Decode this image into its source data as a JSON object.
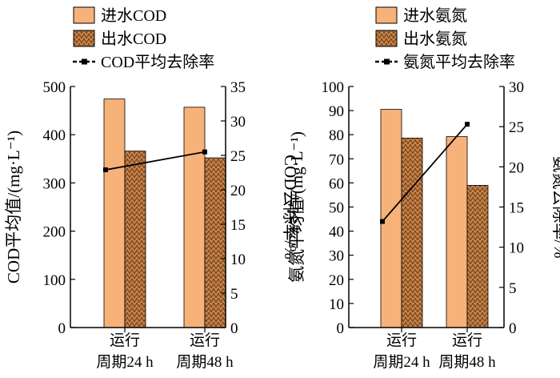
{
  "chart_data": [
    {
      "type": "bar",
      "categories": [
        [
          "运行",
          "周期24 h"
        ],
        [
          "运行",
          "周期48 h"
        ]
      ],
      "series": [
        {
          "name": "进水COD",
          "axis": "left",
          "style": "bar-solid",
          "values": [
            474,
            457
          ]
        },
        {
          "name": "出水COD",
          "axis": "left",
          "style": "bar-hatched",
          "values": [
            366,
            352
          ]
        },
        {
          "name": "COD平均去除率",
          "axis": "right",
          "style": "line-marker",
          "values": [
            22.9,
            25.5
          ]
        }
      ],
      "ylabel": "COD平均值/(mg·L⁻¹)",
      "y2label": "COD去除率/%",
      "ylim": [
        0,
        500
      ],
      "yticks": [
        0,
        100,
        200,
        300,
        400,
        500
      ],
      "y2lim": [
        0,
        35
      ],
      "y2ticks": [
        0,
        5,
        10,
        15,
        20,
        25,
        30,
        35
      ],
      "legend_position": "top"
    },
    {
      "type": "bar",
      "categories": [
        [
          "运行",
          "周期24 h"
        ],
        [
          "运行",
          "周期48 h"
        ]
      ],
      "series": [
        {
          "name": "进水氨氮",
          "axis": "left",
          "style": "bar-solid",
          "values": [
            90.5,
            79.2
          ]
        },
        {
          "name": "出水氨氮",
          "axis": "left",
          "style": "bar-hatched",
          "values": [
            78.6,
            59
          ]
        },
        {
          "name": "氨氮平均去除率",
          "axis": "right",
          "style": "line-marker",
          "values": [
            13.2,
            25.3
          ]
        }
      ],
      "ylabel": "氨氮平均值/(mg·L⁻¹)",
      "y2label": "氨氮去除率/%",
      "ylim": [
        0,
        100
      ],
      "yticks": [
        0,
        10,
        20,
        30,
        40,
        50,
        60,
        70,
        80,
        90,
        100
      ],
      "y2lim": [
        0,
        30
      ],
      "y2ticks": [
        0,
        5,
        10,
        15,
        20,
        25,
        30
      ],
      "legend_position": "top"
    }
  ],
  "colors": {
    "bar_fill": "#f7b27a",
    "hatch_fill": "#c9864e",
    "hatch_line": "#6b3a12",
    "line": "#000000"
  }
}
